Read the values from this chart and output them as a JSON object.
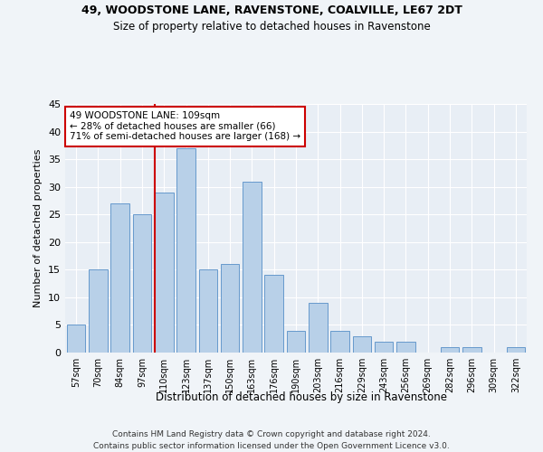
{
  "title1": "49, WOODSTONE LANE, RAVENSTONE, COALVILLE, LE67 2DT",
  "title2": "Size of property relative to detached houses in Ravenstone",
  "xlabel": "Distribution of detached houses by size in Ravenstone",
  "ylabel": "Number of detached properties",
  "categories": [
    "57sqm",
    "70sqm",
    "84sqm",
    "97sqm",
    "110sqm",
    "123sqm",
    "137sqm",
    "150sqm",
    "163sqm",
    "176sqm",
    "190sqm",
    "203sqm",
    "216sqm",
    "229sqm",
    "243sqm",
    "256sqm",
    "269sqm",
    "282sqm",
    "296sqm",
    "309sqm",
    "322sqm"
  ],
  "values": [
    5,
    15,
    27,
    25,
    29,
    37,
    15,
    16,
    31,
    14,
    4,
    9,
    4,
    3,
    2,
    2,
    0,
    1,
    1,
    0,
    1
  ],
  "bar_color": "#b8d0e8",
  "bar_edge_color": "#6699cc",
  "vline_color": "#cc0000",
  "annotation_text": "49 WOODSTONE LANE: 109sqm\n← 28% of detached houses are smaller (66)\n71% of semi-detached houses are larger (168) →",
  "annotation_box_color": "#ffffff",
  "annotation_box_edge": "#cc0000",
  "ylim": [
    0,
    45
  ],
  "yticks": [
    0,
    5,
    10,
    15,
    20,
    25,
    30,
    35,
    40,
    45
  ],
  "bg_color": "#e8eef5",
  "fig_bg_color": "#f0f4f8",
  "grid_color": "#ffffff",
  "footer": "Contains HM Land Registry data © Crown copyright and database right 2024.\nContains public sector information licensed under the Open Government Licence v3.0."
}
